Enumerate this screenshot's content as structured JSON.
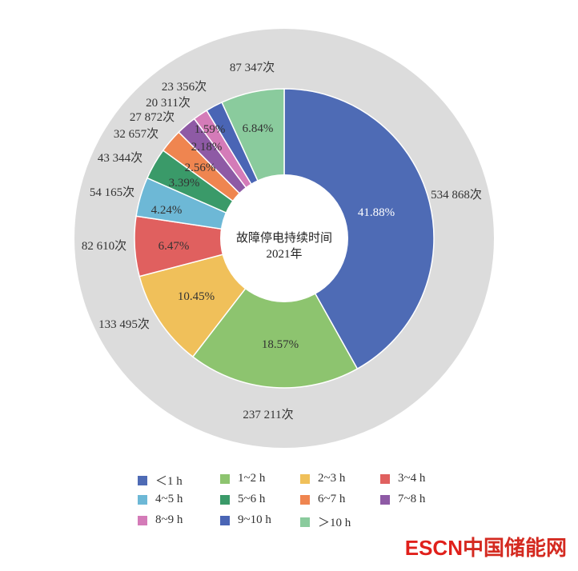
{
  "chart_data": {
    "type": "pie",
    "subtype": "donut",
    "center_label": [
      "故障停电持续时间",
      "2021年"
    ],
    "categories": [
      "<1 h",
      "1~2 h",
      "2~3 h",
      "3~4 h",
      "4~5 h",
      "5~6 h",
      "6~7 h",
      "7~8 h",
      "8~9 h",
      "9~10 h",
      ">10 h"
    ],
    "legend_labels": [
      "＜1 h",
      "1~2 h",
      "2~3 h",
      "3~4 h",
      "4~5 h",
      "5~6 h",
      "6~7 h",
      "7~8 h",
      "8~9 h",
      "9~10 h",
      "＞10 h"
    ],
    "values": [
      534868,
      237211,
      133495,
      82610,
      54165,
      43344,
      32657,
      27872,
      20311,
      23356,
      87347
    ],
    "value_labels": [
      "534 868次",
      "237 211次",
      "133 495次",
      "82 610次",
      "54 165次",
      "43 344次",
      "32 657次",
      "27 872次",
      "20 311次",
      "23 356次",
      "87 347次"
    ],
    "percent_labels": [
      "41.88%",
      "18.57%",
      "10.45%",
      "6.47%",
      "4.24%",
      "3.39%",
      "2.56%",
      "2.18%",
      "1.59%",
      "",
      "6.84%"
    ],
    "colors": [
      "#4e6bb5",
      "#8dc46f",
      "#f0c05a",
      "#e0605f",
      "#6db8d6",
      "#3a9a69",
      "#ef8550",
      "#8e5aa5",
      "#d47bb8",
      "#4a65b5",
      "#8acb9d"
    ],
    "ring_background": "#dcdcdc",
    "start": "top",
    "direction": "clockwise",
    "legend_position": "bottom"
  },
  "watermark": {
    "latin": "ESCN",
    "chinese": "中国储能网"
  }
}
